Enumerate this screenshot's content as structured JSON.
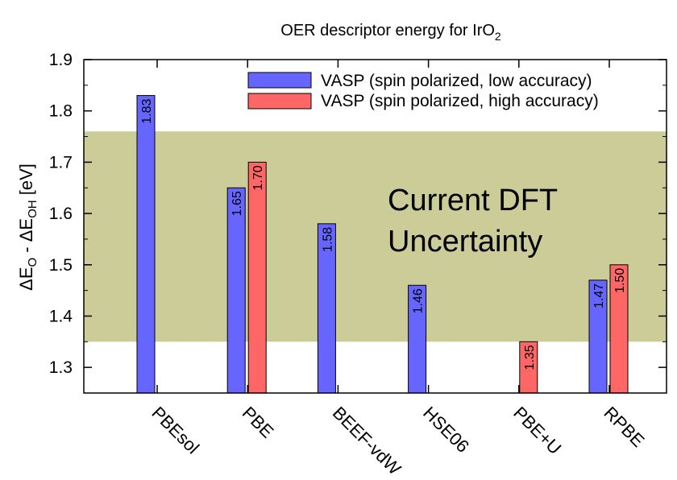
{
  "chart_data": {
    "type": "bar",
    "title": "OER descriptor energy for IrO",
    "title_sub": "2",
    "ylabel": {
      "part1": "ΔE",
      "sub1": "O",
      "part2": " - ΔE",
      "sub2": "OH",
      "part3": " [eV]"
    },
    "ylim": [
      1.25,
      1.9
    ],
    "yticks": [
      1.3,
      1.4,
      1.5,
      1.6,
      1.7,
      1.8,
      1.9
    ],
    "ytick_labels": [
      "1.3",
      "1.4",
      "1.5",
      "1.6",
      "1.7",
      "1.8",
      "1.9"
    ],
    "categories": [
      "PBEsol",
      "PBE",
      "BEEF-vdW",
      "HSE06",
      "PBE+U",
      "RPBE"
    ],
    "series": [
      {
        "name": "VASP (spin polarized, low accuracy)",
        "color": "#6666ff",
        "values": [
          1.83,
          1.65,
          1.58,
          1.46,
          null,
          1.47
        ],
        "labels": [
          "1.83",
          "1.65",
          "1.58",
          "1.46",
          "",
          "1.47"
        ]
      },
      {
        "name": "VASP (spin polarized, high accuracy)",
        "color": "#ff6666",
        "values": [
          null,
          1.7,
          null,
          null,
          1.35,
          1.5
        ],
        "labels": [
          "",
          "1.70",
          "",
          "",
          "1.35",
          "1.50"
        ]
      }
    ],
    "uncertainty_band": {
      "range": [
        1.35,
        1.76
      ],
      "color": "#cccc99",
      "label_line1": "Current DFT",
      "label_line2": "Uncertainty"
    },
    "legend_placement": "top-right",
    "grid": false
  }
}
